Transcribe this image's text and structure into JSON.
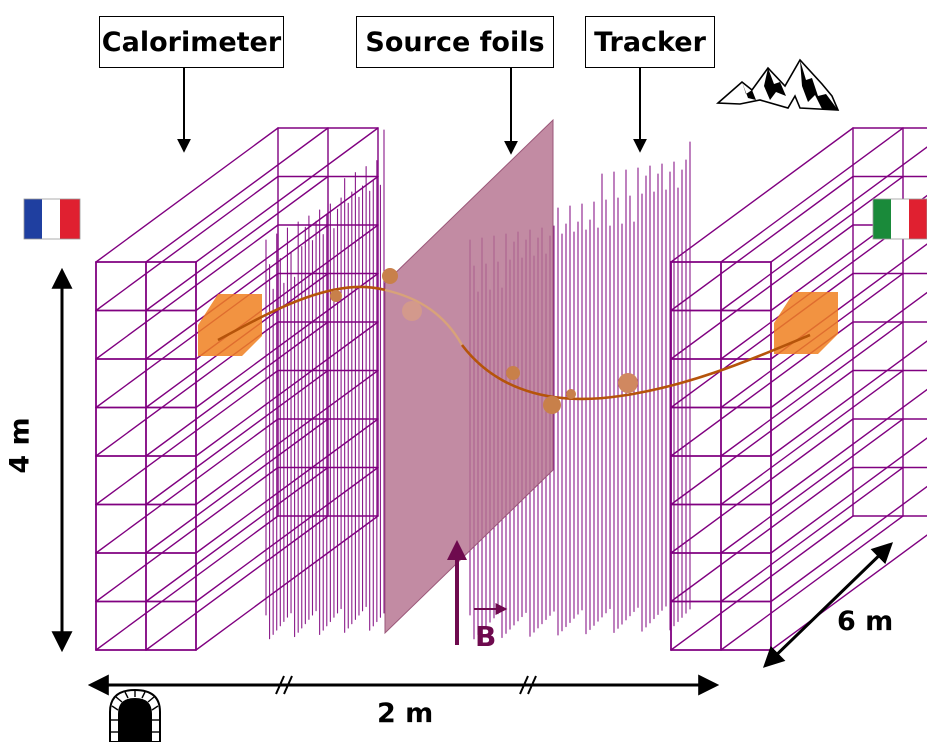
{
  "labels": {
    "calorimeter": "Calorimeter",
    "source_foils": "Source foils",
    "tracker": "Tracker",
    "magnetic_field": "B",
    "height": "4 m",
    "length": "2 m",
    "depth": "6 m"
  },
  "icons": {
    "left_flag": "france-flag-icon",
    "right_flag": "italy-flag-icon",
    "mountain": "mountain-icon",
    "tunnel": "tunnel-icon"
  },
  "colors": {
    "calorimeter_grid": "#800080",
    "tracker_wires": "#8a1a8a",
    "source_foil": "#b5728f",
    "track": "#b5540a",
    "hit_block": "#f08020",
    "field_arrow": "#6e0a4e",
    "flag_blue": "#1f3fa0",
    "flag_red": "#e02030",
    "flag_green": "#1a8a3a"
  }
}
